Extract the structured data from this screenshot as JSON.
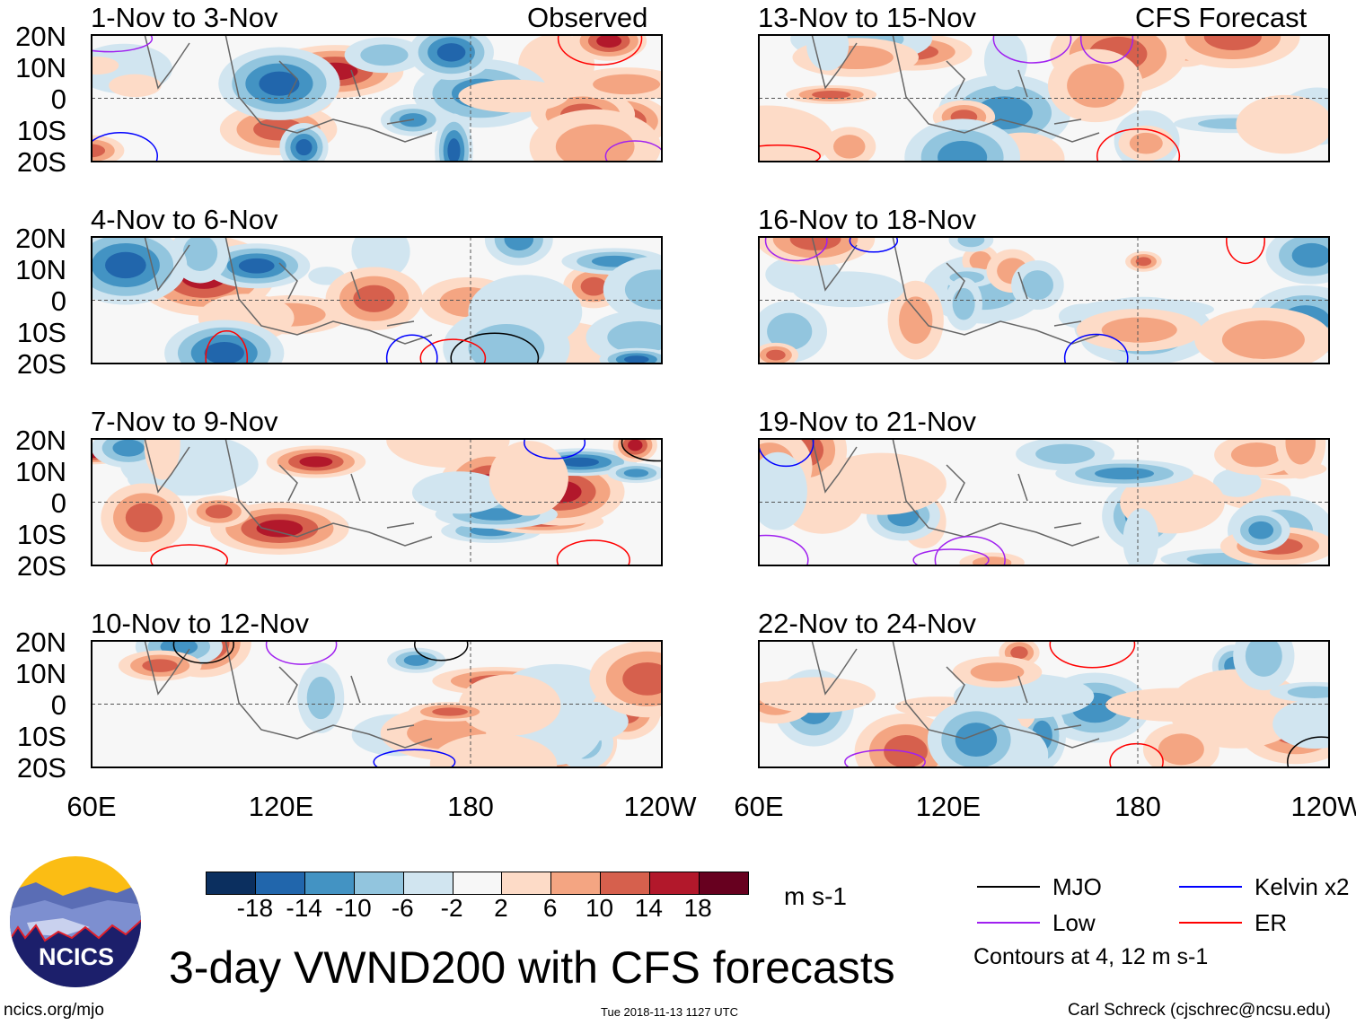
{
  "figure": {
    "title": "3-day VWND200 with CFS forecasts",
    "observed_label": "Observed",
    "forecast_label": "CFS Forecast",
    "website": "ncics.org/mjo",
    "timestamp": "Tue 2018-11-13 1127 UTC",
    "author": "Carl Schreck (cjschrec@ncsu.edu)",
    "logo_text": "NCICS"
  },
  "axes": {
    "lat_labels": [
      "20N",
      "10N",
      "0",
      "10S",
      "20S"
    ],
    "lon_labels": [
      "60E",
      "120E",
      "180",
      "120W"
    ]
  },
  "panels_observed": [
    {
      "title": "1-Nov to 3-Nov"
    },
    {
      "title": "4-Nov to 6-Nov"
    },
    {
      "title": "7-Nov to 9-Nov"
    },
    {
      "title": "10-Nov to 12-Nov"
    }
  ],
  "panels_forecast": [
    {
      "title": "13-Nov to 15-Nov"
    },
    {
      "title": "16-Nov to 18-Nov"
    },
    {
      "title": "19-Nov to 21-Nov"
    },
    {
      "title": "22-Nov to 24-Nov"
    }
  ],
  "colorbar": {
    "units": "m s-1",
    "tick_labels": [
      "-18",
      "-14",
      "-10",
      "-6",
      "-2",
      "2",
      "6",
      "10",
      "14",
      "18"
    ],
    "colors": [
      "#0b2f5f",
      "#2166ac",
      "#4393c3",
      "#92c5de",
      "#d1e5f0",
      "#f7f7f7",
      "#fddbc7",
      "#f4a582",
      "#d6604d",
      "#b2182b",
      "#67001f"
    ]
  },
  "legend": {
    "items": [
      {
        "label": "MJO",
        "color": "#000000"
      },
      {
        "label": "Kelvin x2",
        "color": "#0000ff"
      },
      {
        "label": "Low",
        "color": "#a020f0"
      },
      {
        "label": "ER",
        "color": "#ff0000"
      }
    ],
    "note": "Contours at 4, 12 m s-1"
  }
}
